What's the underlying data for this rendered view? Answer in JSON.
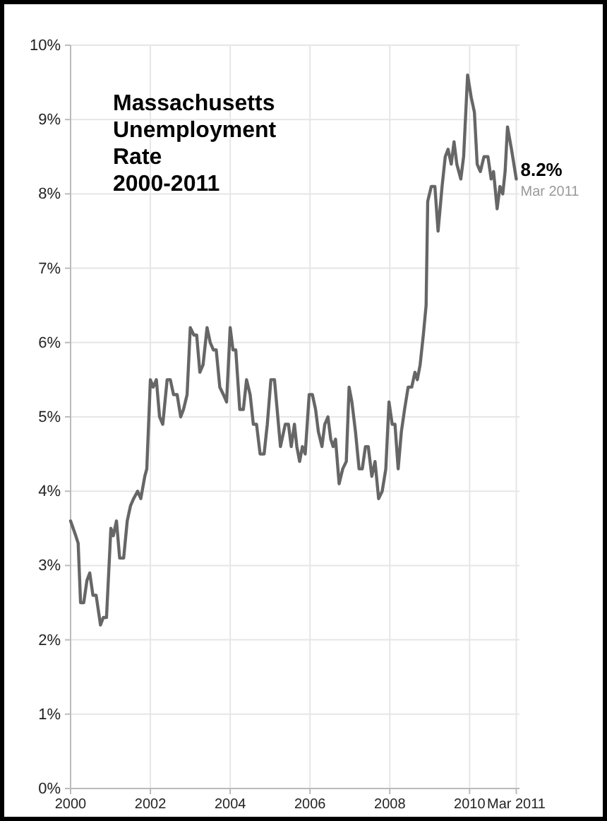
{
  "chart_data": {
    "type": "line",
    "title": "Massachusetts\nUnemployment\nRate\n2000-2011",
    "x": [
      2000.0,
      2000.13,
      2000.19,
      2000.25,
      2000.33,
      2000.41,
      2000.48,
      2000.56,
      2000.64,
      2000.75,
      2000.82,
      2000.9,
      2001.01,
      2001.07,
      2001.15,
      2001.23,
      2001.33,
      2001.42,
      2001.5,
      2001.58,
      2001.68,
      2001.76,
      2001.86,
      2001.91,
      2002.0,
      2002.07,
      2002.15,
      2002.23,
      2002.31,
      2002.42,
      2002.5,
      2002.58,
      2002.67,
      2002.76,
      2002.83,
      2002.92,
      2003.0,
      2003.09,
      2003.16,
      2003.24,
      2003.32,
      2003.42,
      2003.5,
      2003.58,
      2003.65,
      2003.74,
      2003.83,
      2003.91,
      2004.0,
      2004.07,
      2004.14,
      2004.24,
      2004.33,
      2004.41,
      2004.5,
      2004.58,
      2004.66,
      2004.75,
      2004.85,
      2004.93,
      2005.02,
      2005.11,
      2005.26,
      2005.38,
      2005.46,
      2005.53,
      2005.61,
      2005.67,
      2005.74,
      2005.81,
      2005.88,
      2005.98,
      2006.06,
      2006.14,
      2006.21,
      2006.3,
      2006.37,
      2006.45,
      2006.52,
      2006.58,
      2006.64,
      2006.73,
      2006.82,
      2006.91,
      2006.98,
      2007.05,
      2007.14,
      2007.23,
      2007.31,
      2007.39,
      2007.46,
      2007.55,
      2007.63,
      2007.72,
      2007.81,
      2007.9,
      2007.98,
      2008.06,
      2008.13,
      2008.21,
      2008.29,
      2008.37,
      2008.46,
      2008.55,
      2008.63,
      2008.69,
      2008.76,
      2008.84,
      2008.91,
      2008.95,
      2009.04,
      2009.13,
      2009.21,
      2009.31,
      2009.39,
      2009.46,
      2009.54,
      2009.61,
      2009.68,
      2009.78,
      2009.85,
      2009.95,
      2010.04,
      2010.12,
      2010.19,
      2010.27,
      2010.36,
      2010.46,
      2010.54,
      2010.6,
      2010.69,
      2010.76,
      2010.83,
      2010.89,
      2010.95,
      2011.05,
      2011.17
    ],
    "series": [
      {
        "color": "#666666",
        "values": [
          3.6,
          3.4,
          3.3,
          2.5,
          2.5,
          2.8,
          2.9,
          2.6,
          2.6,
          2.2,
          2.3,
          2.3,
          3.5,
          3.4,
          3.6,
          3.1,
          3.1,
          3.6,
          3.8,
          3.9,
          4.0,
          3.9,
          4.2,
          4.3,
          5.5,
          5.4,
          5.5,
          5.0,
          4.9,
          5.5,
          5.5,
          5.3,
          5.3,
          5.0,
          5.1,
          5.3,
          6.2,
          6.1,
          6.1,
          5.6,
          5.7,
          6.2,
          6.0,
          5.9,
          5.9,
          5.4,
          5.3,
          5.2,
          6.2,
          5.9,
          5.9,
          5.1,
          5.1,
          5.5,
          5.3,
          4.9,
          4.9,
          4.5,
          4.5,
          4.9,
          5.5,
          5.5,
          4.6,
          4.9,
          4.9,
          4.6,
          4.9,
          4.6,
          4.4,
          4.6,
          4.5,
          5.3,
          5.3,
          5.1,
          4.8,
          4.6,
          4.9,
          5.0,
          4.7,
          4.6,
          4.7,
          4.1,
          4.3,
          4.4,
          5.4,
          5.2,
          4.8,
          4.3,
          4.3,
          4.6,
          4.6,
          4.2,
          4.4,
          3.9,
          4.0,
          4.3,
          5.2,
          4.9,
          4.9,
          4.3,
          4.8,
          5.1,
          5.4,
          5.4,
          5.6,
          5.5,
          5.7,
          6.1,
          6.5,
          7.9,
          8.1,
          8.1,
          7.5,
          8.1,
          8.5,
          8.6,
          8.4,
          8.7,
          8.4,
          8.2,
          8.5,
          9.6,
          9.3,
          9.1,
          8.4,
          8.3,
          8.5,
          8.5,
          8.2,
          8.3,
          7.8,
          8.1,
          8.0,
          8.3,
          8.9,
          8.6,
          8.2
        ]
      }
    ],
    "xlim": [
      2000,
      2011.25
    ],
    "xticks": [
      2000,
      2002,
      2004,
      2006,
      2008,
      2010,
      {
        "value": 2011.17,
        "label": "Mar 2011"
      }
    ],
    "ylim": [
      0,
      10
    ],
    "yticks": [
      {
        "value": 0,
        "label": "0%"
      },
      {
        "value": 1,
        "label": "1%"
      },
      {
        "value": 2,
        "label": "2%"
      },
      {
        "value": 3,
        "label": "3%"
      },
      {
        "value": 4,
        "label": "4%"
      },
      {
        "value": 5,
        "label": "5%"
      },
      {
        "value": 6,
        "label": "6%"
      },
      {
        "value": 7,
        "label": "7%"
      },
      {
        "value": 8,
        "label": "8%"
      },
      {
        "value": 9,
        "label": "9%"
      },
      {
        "value": 10,
        "label": "10%"
      }
    ],
    "grid": true,
    "annotations": [
      {
        "text": "8.2%",
        "x": 2011.17,
        "y": 8.2
      },
      {
        "text": "Mar 2011",
        "x": 2011.17,
        "y": 8.2
      }
    ]
  }
}
